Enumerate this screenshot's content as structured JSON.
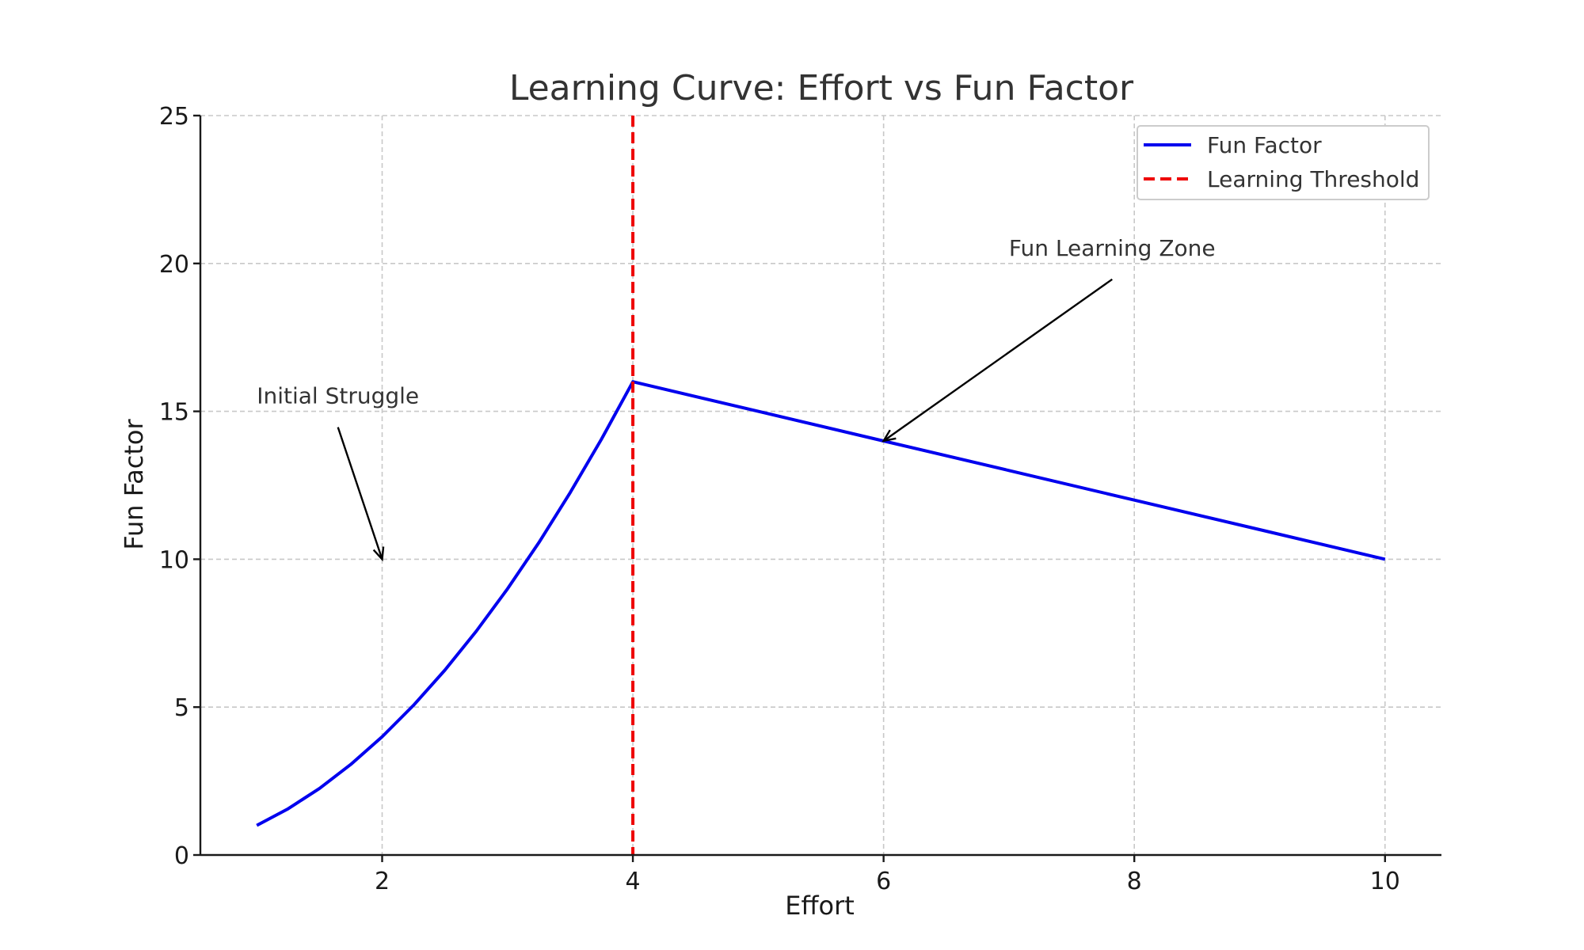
{
  "chart_data": {
    "type": "line",
    "title": "Learning Curve: Effort vs Fun Factor",
    "xlabel": "Effort",
    "ylabel": "Fun Factor",
    "xlim": [
      0.55,
      10.45
    ],
    "ylim": [
      0,
      25
    ],
    "xticks": [
      2,
      4,
      6,
      8,
      10
    ],
    "yticks": [
      0,
      5,
      10,
      15,
      20,
      25
    ],
    "grid": true,
    "legend_position": "top-right",
    "series": [
      {
        "name": "Fun Factor",
        "color": "#0000ee",
        "style": "solid",
        "x": [
          1.0,
          1.25,
          1.5,
          1.75,
          2.0,
          2.25,
          2.5,
          2.75,
          3.0,
          3.25,
          3.5,
          3.75,
          4.0,
          5.0,
          6.0,
          7.0,
          8.0,
          9.0,
          10.0
        ],
        "y": [
          1.0,
          1.5625,
          2.25,
          3.0625,
          4.0,
          5.0625,
          6.25,
          7.5625,
          9.0,
          10.5625,
          12.25,
          14.0625,
          16.0,
          15.0,
          14.0,
          13.0,
          12.0,
          11.0,
          10.0
        ]
      }
    ],
    "reference_lines": [
      {
        "name": "Learning Threshold",
        "orientation": "vertical",
        "x": 4,
        "color": "#ee0000",
        "style": "dashed"
      }
    ],
    "annotations": [
      {
        "text": "Initial Struggle",
        "text_x": 1.0,
        "text_y": 15.0,
        "point_x": 2.0,
        "point_y": 10.0
      },
      {
        "text": "Fun Learning Zone",
        "text_x": 7.0,
        "text_y": 20.0,
        "point_x": 6.0,
        "point_y": 14.0
      }
    ]
  }
}
